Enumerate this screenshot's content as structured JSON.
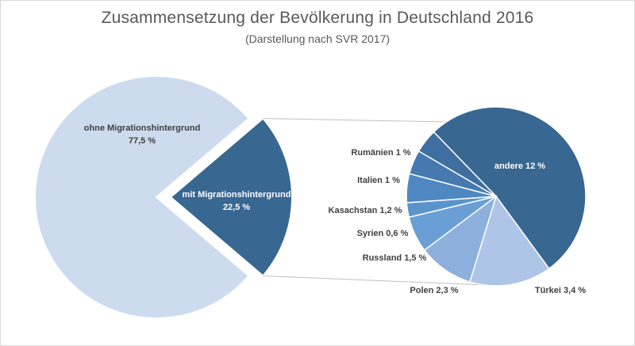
{
  "chart_data": {
    "type": "bar-of-pie",
    "title": "Zusammensetzung  der Bevölkerung in Deutschland 2016",
    "subtitle": "(Darstellung nach SVR 2017)",
    "main_pie": {
      "slices": [
        {
          "name": "ohne Migrationshintergrund",
          "value_label": "77,5 %",
          "value": 77.5,
          "color": "#cddbee",
          "label_color": "#404040"
        },
        {
          "name": "mit Migrationshintergrund",
          "value_label": "22,5 %",
          "value": 22.5,
          "color": "#386791",
          "label_color": "#ffffff",
          "exploded": true
        }
      ]
    },
    "secondary_pie": {
      "slices": [
        {
          "name": "andere",
          "label": "andere 12 %",
          "value": 12,
          "color": "#386791",
          "label_color": "#ffffff"
        },
        {
          "name": "Türkei",
          "label": "Türkei 3,4 %",
          "value": 3.4,
          "color": "#aec5e8",
          "label_color": "#404040"
        },
        {
          "name": "Polen",
          "label": "Polen 2,3 %",
          "value": 2.3,
          "color": "#8cafdc",
          "label_color": "#404040"
        },
        {
          "name": "Russland",
          "label": "Russland 1,5 %",
          "value": 1.5,
          "color": "#6a9fd6",
          "label_color": "#404040"
        },
        {
          "name": "Syrien",
          "label": "Syrien 0,6 %",
          "value": 0.6,
          "color": "#5b94cc",
          "label_color": "#404040"
        },
        {
          "name": "Kasachstan",
          "label": "Kasachstan 1,2 %",
          "value": 1.2,
          "color": "#4f87c1",
          "label_color": "#404040"
        },
        {
          "name": "Italien",
          "label": "Italien 1 %",
          "value": 1,
          "color": "#4679b0",
          "label_color": "#404040"
        },
        {
          "name": "Rumänien",
          "label": "Rumänien 1 %",
          "value": 1,
          "color": "#3f6ea0",
          "label_color": "#404040"
        }
      ]
    }
  }
}
